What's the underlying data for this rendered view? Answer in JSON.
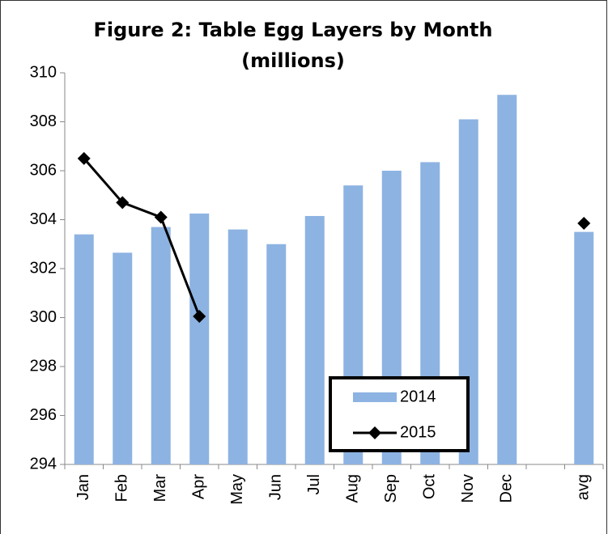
{
  "chart_data": {
    "type": "bar-line",
    "title": "Figure 2: Table Egg Layers by Month",
    "subtitle": "(millions)",
    "categories": [
      "Jan",
      "Feb",
      "Mar",
      "Apr",
      "May",
      "Jun",
      "Jul",
      "Aug",
      "Sep",
      "Oct",
      "Nov",
      "Dec",
      null,
      "avg"
    ],
    "series": [
      {
        "name": "2014",
        "type": "bar",
        "color": "#8db3e2",
        "values": [
          303.4,
          302.65,
          303.7,
          304.25,
          303.6,
          303.0,
          304.15,
          305.4,
          306.0,
          306.35,
          308.1,
          309.1,
          null,
          303.5
        ]
      },
      {
        "name": "2015",
        "type": "line",
        "color": "#000000",
        "values": [
          306.5,
          304.7,
          304.1,
          300.05,
          null,
          null,
          null,
          null,
          null,
          null,
          null,
          null,
          null,
          303.85
        ]
      }
    ],
    "ylim": [
      294,
      310
    ],
    "yticks": [
      294,
      296,
      298,
      300,
      302,
      304,
      306,
      308,
      310
    ],
    "grid": false
  }
}
